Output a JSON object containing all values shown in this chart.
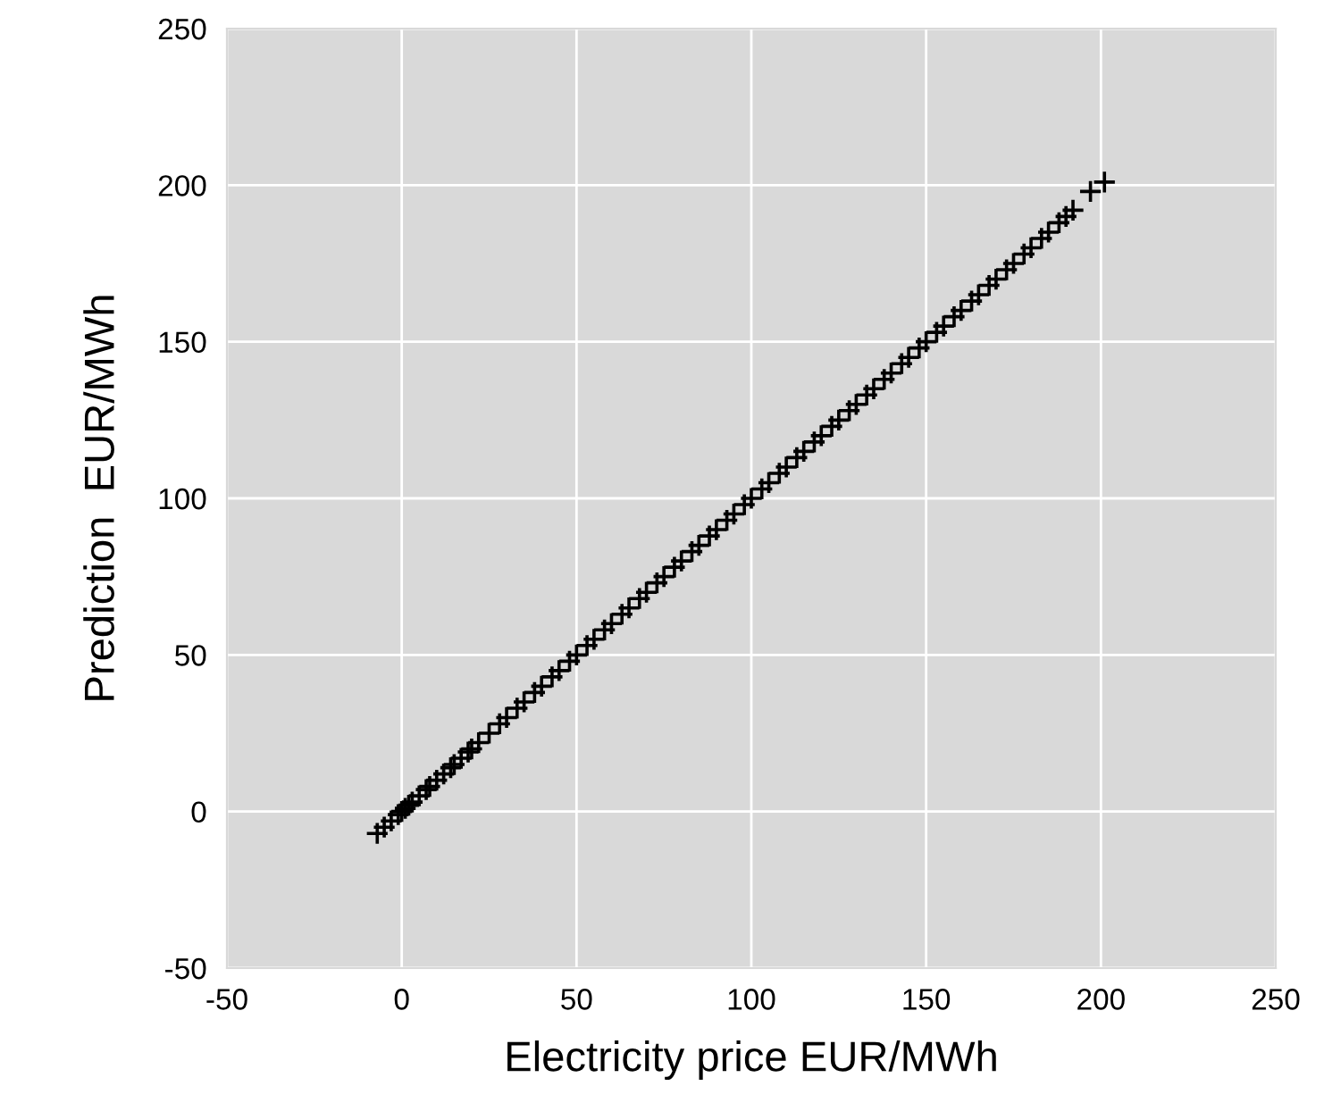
{
  "chart_data": {
    "type": "scatter",
    "xlabel": "Electricity price EUR/MWh",
    "ylabel": "Prediction  EUR/MWh",
    "x": [
      -7,
      -5,
      -3,
      -1,
      0,
      1,
      2,
      3,
      5,
      7,
      8,
      10,
      12,
      14,
      15,
      17,
      19,
      20,
      22,
      25,
      28,
      30,
      33,
      35,
      38,
      40,
      43,
      45,
      48,
      50,
      53,
      55,
      58,
      60,
      63,
      65,
      68,
      70,
      73,
      75,
      78,
      80,
      83,
      85,
      88,
      90,
      93,
      95,
      98,
      100,
      103,
      105,
      108,
      110,
      113,
      115,
      118,
      120,
      123,
      125,
      128,
      130,
      133,
      135,
      138,
      140,
      143,
      145,
      148,
      150,
      153,
      155,
      158,
      160,
      163,
      165,
      168,
      170,
      173,
      175,
      178,
      180,
      183,
      185,
      188,
      190,
      192,
      197,
      201
    ],
    "series": [
      {
        "color": "#000000",
        "values": [
          -7,
          -5,
          -3,
          -1,
          0,
          1,
          2,
          3,
          5,
          7,
          8,
          10,
          12,
          14,
          15,
          17,
          19,
          20,
          22,
          25,
          28,
          30,
          33,
          35,
          38,
          40,
          43,
          45,
          48,
          50,
          53,
          55,
          58,
          60,
          63,
          65,
          68,
          70,
          73,
          75,
          78,
          80,
          83,
          85,
          88,
          90,
          93,
          95,
          98,
          100,
          103,
          105,
          108,
          110,
          113,
          115,
          118,
          120,
          123,
          125,
          128,
          130,
          133,
          135,
          138,
          140,
          143,
          145,
          148,
          150,
          153,
          155,
          158,
          160,
          163,
          165,
          168,
          170,
          173,
          175,
          178,
          180,
          183,
          185,
          188,
          190,
          192,
          198,
          201
        ]
      }
    ],
    "marker": "cross",
    "grid": true,
    "xlim": [
      -50,
      250
    ],
    "ylim": [
      -50,
      250
    ],
    "xticks": [
      {
        "value": -50,
        "label": "-50"
      },
      0,
      50,
      100,
      150,
      200,
      250
    ],
    "yticks": [
      {
        "value": -50,
        "label": "-50"
      },
      0,
      50,
      100,
      150,
      200,
      250
    ]
  }
}
